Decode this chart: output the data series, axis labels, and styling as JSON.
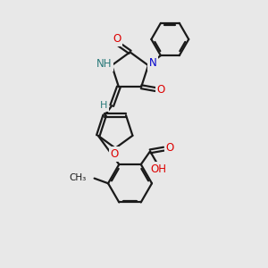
{
  "bg_color": "#e8e8e8",
  "bond_color": "#1a1a1a",
  "N_color": "#0000cc",
  "O_color": "#dd0000",
  "H_color": "#2a7a7a",
  "line_width": 1.6,
  "font_size": 8.5,
  "fig_size": [
    3.0,
    3.0
  ],
  "dpi": 100,
  "xlim": [
    0,
    10
  ],
  "ylim": [
    0,
    10
  ]
}
